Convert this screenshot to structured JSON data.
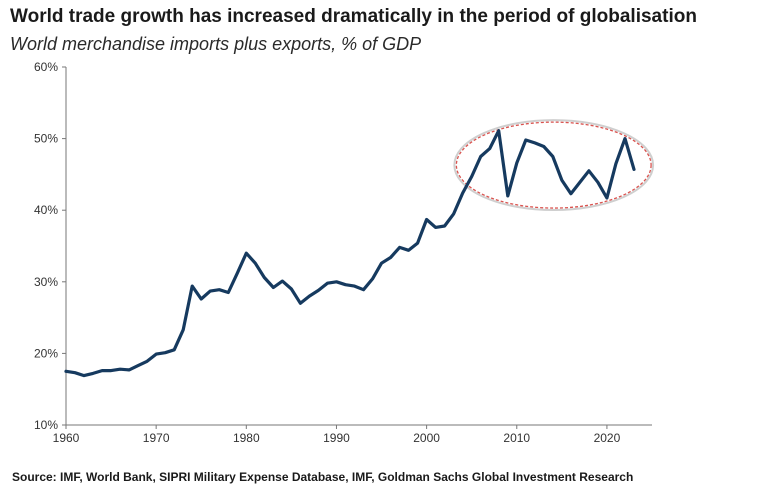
{
  "chart_data": {
    "type": "line",
    "title": "World trade growth has increased dramatically in the period of globalisation",
    "subtitle": "World merchandise imports plus exports, % of GDP",
    "source": "Source: IMF, World Bank, SIPRI Military Expense Database, IMF, Goldman Sachs Global Investment Research",
    "xlabel": "",
    "ylabel": "",
    "xlim": [
      1960,
      2025
    ],
    "ylim": [
      10,
      60
    ],
    "x_ticks": [
      1960,
      1970,
      1980,
      1990,
      2000,
      2010,
      2020
    ],
    "x_tick_labels": [
      "1960",
      "1970",
      "1980",
      "1990",
      "2000",
      "2010",
      "2020"
    ],
    "y_ticks": [
      10,
      20,
      30,
      40,
      50,
      60
    ],
    "y_tick_labels": [
      "10%",
      "20%",
      "30%",
      "40%",
      "50%",
      "60%"
    ],
    "grid": false,
    "legend": "none",
    "series": [
      {
        "color": "#163a5f",
        "x": [
          1960,
          1961,
          1962,
          1963,
          1964,
          1965,
          1966,
          1967,
          1968,
          1969,
          1970,
          1971,
          1972,
          1973,
          1974,
          1975,
          1976,
          1977,
          1978,
          1979,
          1980,
          1981,
          1982,
          1983,
          1984,
          1985,
          1986,
          1987,
          1988,
          1989,
          1990,
          1991,
          1992,
          1993,
          1994,
          1995,
          1996,
          1997,
          1998,
          1999,
          2000,
          2001,
          2002,
          2003,
          2004,
          2005,
          2006,
          2007,
          2008,
          2009,
          2010,
          2011,
          2012,
          2013,
          2014,
          2015,
          2016,
          2017,
          2018,
          2019,
          2020,
          2021,
          2022,
          2023
        ],
        "values": [
          17.5,
          17.3,
          16.9,
          17.2,
          17.6,
          17.6,
          17.8,
          17.7,
          18.3,
          18.9,
          19.9,
          20.1,
          20.5,
          23.3,
          29.4,
          27.6,
          28.7,
          28.9,
          28.5,
          31.2,
          34.0,
          32.6,
          30.6,
          29.2,
          30.1,
          29.0,
          27.0,
          28.0,
          28.8,
          29.8,
          30.0,
          29.6,
          29.4,
          28.9,
          30.4,
          32.6,
          33.4,
          34.8,
          34.4,
          35.4,
          38.7,
          37.6,
          37.8,
          39.5,
          42.4,
          44.7,
          47.5,
          48.6,
          51.1,
          42.0,
          46.6,
          49.8,
          49.4,
          48.9,
          47.5,
          44.2,
          42.3,
          43.9,
          45.5,
          43.9,
          41.7,
          46.5,
          50.0,
          45.7
        ]
      }
    ],
    "annotation": {
      "type": "ellipse",
      "x_range": [
        2003.3,
        2024.9
      ],
      "y_range": [
        40.3,
        52.3
      ],
      "color": "#d9534f"
    }
  }
}
